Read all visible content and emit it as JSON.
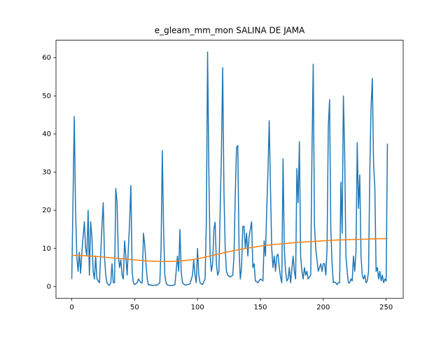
{
  "chart_data": {
    "type": "line",
    "title": "e_gleam_mm_mon SALINA DE JAMA",
    "xlim": [
      -12.55,
      263.55
    ],
    "xticks": [
      0,
      50,
      100,
      150,
      200,
      250
    ],
    "ylim": [
      -3.08,
      64.6
    ],
    "yticks": [
      0,
      10,
      20,
      30,
      40,
      50,
      60
    ],
    "series": [
      {
        "color": "#1f77b4",
        "x": [
          0,
          2,
          3,
          4,
          5,
          6,
          7,
          8,
          10,
          11,
          12,
          13,
          14,
          15,
          16,
          17,
          18,
          19,
          20,
          22,
          24,
          25,
          26,
          27,
          28,
          29,
          30,
          31,
          32,
          33,
          34,
          35,
          36,
          37,
          38,
          39,
          40,
          41,
          42,
          43,
          44,
          45,
          46,
          47,
          48,
          49,
          50,
          52,
          53,
          55,
          56,
          57,
          58,
          59,
          60,
          61,
          62,
          64,
          66,
          68,
          70,
          71,
          72,
          73,
          74,
          75,
          76,
          78,
          80,
          82,
          83,
          84,
          85,
          86,
          87,
          88,
          90,
          92,
          94,
          96,
          97,
          98,
          99,
          100,
          101,
          102,
          104,
          106,
          107,
          108,
          109,
          110,
          111,
          112,
          113,
          114,
          115,
          116,
          117,
          118,
          119,
          120,
          121,
          122,
          123,
          124,
          126,
          128,
          129,
          130,
          131,
          132,
          133,
          134,
          135,
          136,
          137,
          138,
          139,
          140,
          141,
          142,
          143,
          144,
          145,
          146,
          148,
          150,
          152,
          153,
          154,
          155,
          156,
          157,
          158,
          159,
          160,
          161,
          162,
          163,
          164,
          165,
          166,
          167,
          168,
          169,
          170,
          171,
          172,
          173,
          174,
          176,
          177,
          178,
          179,
          180,
          181,
          182,
          183,
          184,
          185,
          186,
          187,
          188,
          190,
          191,
          192,
          193,
          194,
          195,
          196,
          197,
          198,
          199,
          200,
          201,
          202,
          203,
          204,
          205,
          206,
          207,
          208,
          209,
          210,
          211,
          212,
          213,
          214,
          215,
          216,
          217,
          218,
          219,
          220,
          221,
          222,
          223,
          224,
          225,
          226,
          227,
          228,
          229,
          230,
          231,
          232,
          233,
          234,
          235,
          236,
          237,
          238,
          239,
          240,
          241,
          242,
          243,
          244,
          245,
          246,
          247,
          248,
          249,
          250,
          251
        ],
        "values": [
          2,
          44.6,
          20,
          8,
          4,
          9,
          3.5,
          9,
          17,
          10,
          8,
          20,
          3,
          17,
          13,
          4,
          2,
          8,
          2,
          1,
          16,
          22,
          8,
          3,
          1,
          0.5,
          0.3,
          1,
          6,
          1,
          1,
          25.7,
          22,
          8,
          5,
          7,
          3,
          2,
          12,
          8,
          3,
          10,
          17,
          26.5,
          4,
          1,
          0.5,
          1,
          2,
          1,
          1,
          14,
          11,
          6,
          2,
          0.4,
          0.5,
          0.3,
          0.4,
          0.4,
          1,
          10,
          35.7,
          15,
          3,
          1,
          0.4,
          0.3,
          0.3,
          0.5,
          4,
          8,
          4,
          15,
          4,
          1,
          0.4,
          0.5,
          0.7,
          3,
          7,
          3,
          1,
          10,
          3,
          1,
          0.5,
          2,
          17,
          61.5,
          30,
          8,
          4,
          6,
          15,
          16.9,
          6,
          3,
          4,
          20,
          35,
          57.4,
          25,
          10,
          4,
          3,
          2.5,
          3,
          8,
          24,
          36.5,
          37,
          10,
          2,
          5,
          15.8,
          15.8,
          10,
          14,
          8,
          13,
          15,
          17,
          5,
          6,
          1.5,
          1,
          2,
          1.5,
          12,
          8,
          20,
          30,
          43.5,
          26,
          10,
          5,
          8,
          4,
          8,
          8.5,
          5,
          2.5,
          1,
          33.5,
          10,
          4,
          1.5,
          2,
          5,
          1,
          8,
          4,
          2,
          31,
          22,
          38,
          8,
          4,
          2,
          5,
          3,
          4,
          2,
          3,
          35,
          58.3,
          16,
          10,
          7,
          4,
          5,
          6,
          4,
          6,
          6,
          3,
          10,
          42,
          49,
          15,
          6,
          1,
          1.2,
          1,
          0.5,
          1,
          1,
          27.4,
          14,
          50,
          35,
          8,
          4,
          1,
          1,
          2,
          1.5,
          8,
          4,
          9,
          37.7,
          20.5,
          29.3,
          8,
          3,
          2,
          3,
          1,
          1.5,
          4,
          30,
          47,
          54.6,
          32,
          26,
          4,
          5,
          2,
          4,
          1.5,
          3,
          1,
          2,
          1.5,
          37.5
        ]
      },
      {
        "color": "#ff7f0e",
        "x": [
          0,
          10,
          20,
          30,
          40,
          50,
          60,
          70,
          80,
          90,
          100,
          110,
          120,
          130,
          140,
          150,
          160,
          170,
          180,
          190,
          200,
          210,
          220,
          230,
          240,
          250,
          251
        ],
        "values": [
          8.2,
          8.1,
          7.9,
          7.6,
          7.3,
          7.0,
          6.7,
          6.6,
          6.6,
          6.8,
          7.3,
          8.0,
          8.8,
          9.5,
          10.1,
          10.6,
          11.0,
          11.3,
          11.6,
          11.8,
          12.0,
          12.2,
          12.3,
          12.4,
          12.5,
          12.6,
          12.6
        ]
      }
    ]
  }
}
